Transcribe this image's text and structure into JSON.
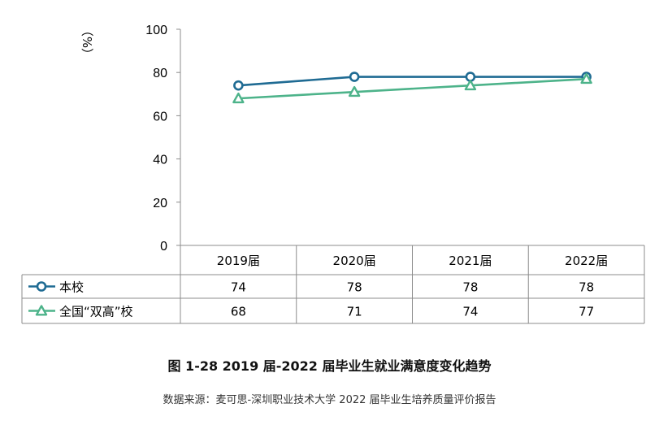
{
  "chart_data": {
    "type": "line",
    "title": "图 1-28 2019 届-2022 届毕业生就业满意度变化趋势",
    "source": "数据来源：麦可思-深圳职业技术大学 2022 届毕业生培养质量评价报告",
    "ylabel": "（%）",
    "ylim": [
      0,
      100
    ],
    "yticks": [
      0,
      20,
      40,
      60,
      80,
      100
    ],
    "grid": false,
    "legend": "table-left",
    "categories": [
      "2019届",
      "2020届",
      "2021届",
      "2022届"
    ],
    "series": [
      {
        "name": "本校",
        "values": [
          74,
          78,
          78,
          78
        ],
        "color": "#1f6b93",
        "marker": "circle"
      },
      {
        "name": "全国“双高”校",
        "values": [
          68,
          71,
          74,
          77
        ],
        "color": "#4db38a",
        "marker": "triangle"
      }
    ]
  }
}
